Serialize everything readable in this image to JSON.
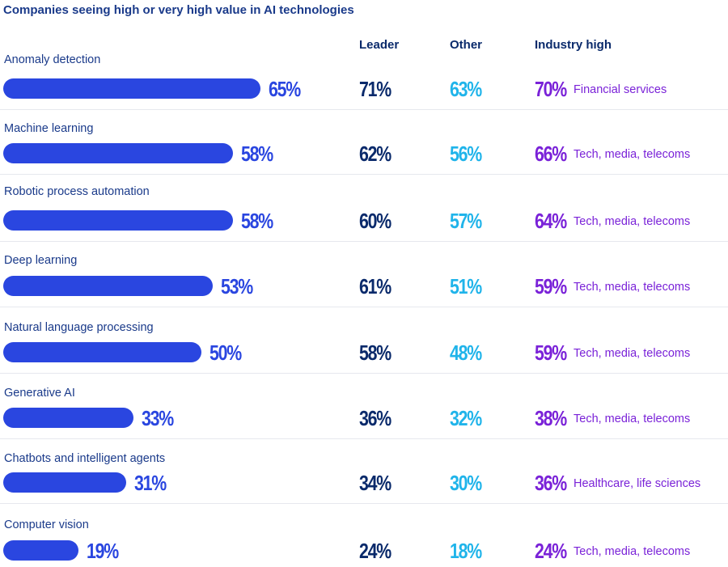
{
  "title": "Companies seeing high or very high value in AI technologies",
  "columns": {
    "leader": "Leader",
    "other": "Other",
    "industry_high": "Industry high"
  },
  "colors": {
    "bar": "#2a46e0",
    "leader": "#0a2a6b",
    "other": "#20b4ea",
    "industry_high": "#7a22d8"
  },
  "chart_data": {
    "type": "bar",
    "orientation": "horizontal",
    "title": "Companies seeing high or very high value in AI technologies",
    "categories": [
      "Anomaly detection",
      "Machine learning",
      "Robotic process automation",
      "Deep learning",
      "Natural language processing",
      "Generative AI",
      "Chatbots and intelligent agents",
      "Computer vision"
    ],
    "values": [
      65,
      58,
      58,
      53,
      50,
      33,
      31,
      19
    ],
    "value_labels": [
      "65%",
      "58%",
      "58%",
      "53%",
      "50%",
      "33%",
      "31%",
      "19%"
    ],
    "leader": [
      "71%",
      "62%",
      "60%",
      "61%",
      "58%",
      "36%",
      "34%",
      "24%"
    ],
    "other": [
      "63%",
      "56%",
      "57%",
      "51%",
      "48%",
      "32%",
      "30%",
      "18%"
    ],
    "industry_high": [
      "70%",
      "66%",
      "64%",
      "59%",
      "59%",
      "38%",
      "36%",
      "24%"
    ],
    "industry_name": [
      "Financial services",
      "Tech, media, telecoms",
      "Tech, media, telecoms",
      "Tech, media, telecoms",
      "Tech, media, telecoms",
      "Tech, media, telecoms",
      "Healthcare, life sciences",
      "Tech, media, telecoms"
    ],
    "xlim": [
      0,
      100
    ]
  }
}
